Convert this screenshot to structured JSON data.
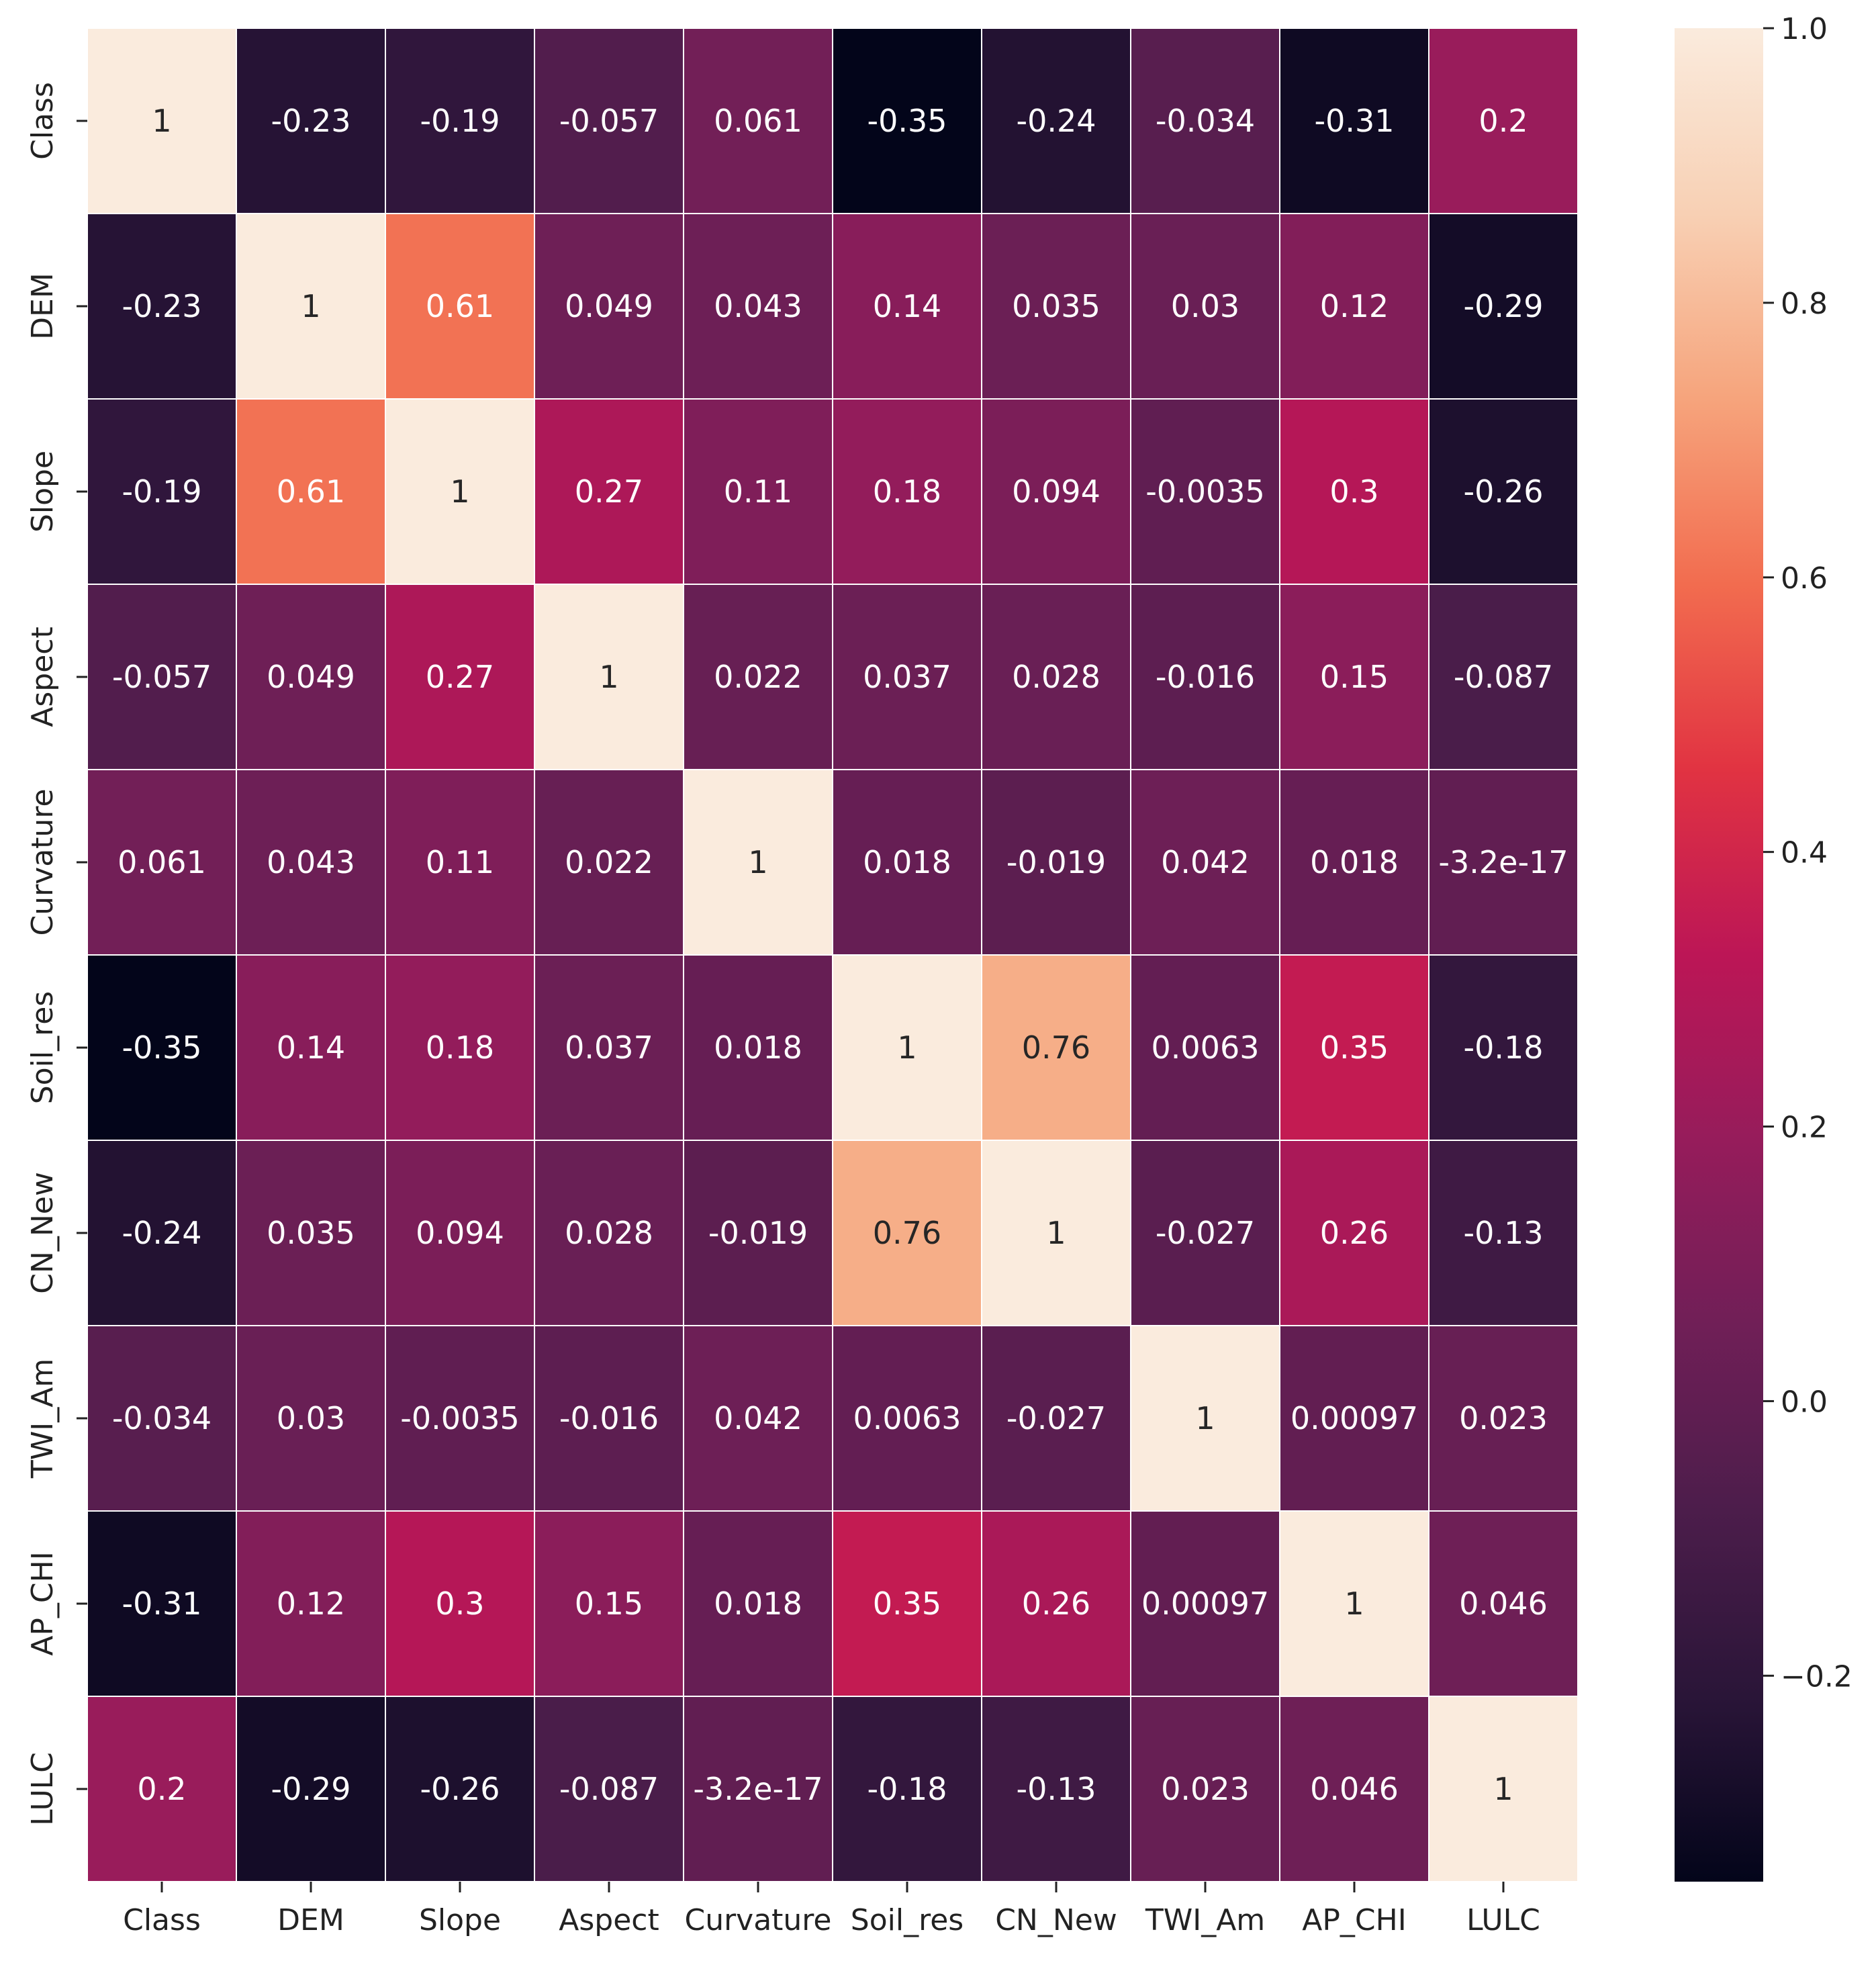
{
  "chart_data": {
    "type": "heatmap",
    "labels": [
      "Class",
      "DEM",
      "Slope",
      "Aspect",
      "Curvature",
      "Soil_res",
      "CN_New",
      "TWI_Am",
      "AP_CHI",
      "LULC"
    ],
    "cells": [
      [
        "1",
        "-0.23",
        "-0.19",
        "-0.057",
        "0.061",
        "-0.35",
        "-0.24",
        "-0.034",
        "-0.31",
        "0.2"
      ],
      [
        "-0.23",
        "1",
        "0.61",
        "0.049",
        "0.043",
        "0.14",
        "0.035",
        "0.03",
        "0.12",
        "-0.29"
      ],
      [
        "-0.19",
        "0.61",
        "1",
        "0.27",
        "0.11",
        "0.18",
        "0.094",
        "-0.0035",
        "0.3",
        "-0.26"
      ],
      [
        "-0.057",
        "0.049",
        "0.27",
        "1",
        "0.022",
        "0.037",
        "0.028",
        "-0.016",
        "0.15",
        "-0.087"
      ],
      [
        "0.061",
        "0.043",
        "0.11",
        "0.022",
        "1",
        "0.018",
        "-0.019",
        "0.042",
        "0.018",
        "-3.2e-17"
      ],
      [
        "-0.35",
        "0.14",
        "0.18",
        "0.037",
        "0.018",
        "1",
        "0.76",
        "0.0063",
        "0.35",
        "-0.18"
      ],
      [
        "-0.24",
        "0.035",
        "0.094",
        "0.028",
        "-0.019",
        "0.76",
        "1",
        "-0.027",
        "0.26",
        "-0.13"
      ],
      [
        "-0.034",
        "0.03",
        "-0.0035",
        "-0.016",
        "0.042",
        "0.0063",
        "-0.027",
        "1",
        "0.00097",
        "0.023"
      ],
      [
        "-0.31",
        "0.12",
        "0.3",
        "0.15",
        "0.018",
        "0.35",
        "0.26",
        "0.00097",
        "1",
        "0.046"
      ],
      [
        "0.2",
        "-0.29",
        "-0.26",
        "-0.087",
        "-3.2e-17",
        "-0.18",
        "-0.13",
        "0.023",
        "0.046",
        "1"
      ]
    ],
    "colorbar": {
      "range": [
        -0.35,
        1.0
      ],
      "ticks": [
        {
          "value": 1.0,
          "label": "1.0"
        },
        {
          "value": 0.8,
          "label": "0.8"
        },
        {
          "value": 0.6,
          "label": "0.6"
        },
        {
          "value": 0.4,
          "label": "0.4"
        },
        {
          "value": 0.2,
          "label": "0.2"
        },
        {
          "value": 0.0,
          "label": "0.0"
        },
        {
          "value": -0.2,
          "label": "−0.2"
        }
      ],
      "colormap": "rocket",
      "colors": [
        "#03051a",
        "#2a1538",
        "#4c1d4b",
        "#701f57",
        "#961c5b",
        "#bc1656",
        "#e13342",
        "#f26c4f",
        "#f6a47c",
        "#f8d0b4",
        "#faebdd"
      ]
    }
  }
}
